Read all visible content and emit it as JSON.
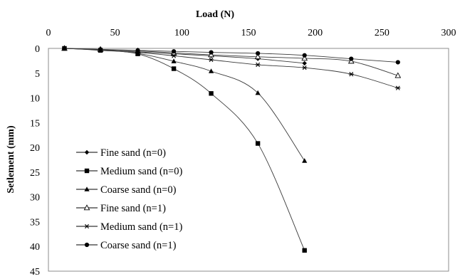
{
  "chart_data": {
    "type": "scatter",
    "xlabel": "Load  (N)",
    "ylabel": "Setlement (mm)",
    "xlim": [
      0,
      300
    ],
    "ylim": [
      0,
      45
    ],
    "y_inverted": true,
    "x_axis_position": "top",
    "grid": false,
    "legend_position": "bottom-left",
    "x_ticks": [
      "0",
      "50",
      "100",
      "150",
      "200",
      "250",
      "300"
    ],
    "y_ticks": [
      "0",
      "5",
      "10",
      "15",
      "20",
      "25",
      "30",
      "35",
      "40",
      "45"
    ],
    "series": [
      {
        "name": "Fine sand (n=0)",
        "marker": "diamond",
        "x": [
          12,
          39,
          67,
          94,
          122,
          157,
          192
        ],
        "y": [
          0,
          0.3,
          0.7,
          1.1,
          1.5,
          2.1,
          3.0
        ]
      },
      {
        "name": "Medium sand (n=0)",
        "marker": "square",
        "x": [
          12,
          39,
          67,
          94,
          122,
          157,
          192
        ],
        "y": [
          0,
          0.4,
          1.1,
          4.1,
          9.1,
          19.2,
          40.8
        ]
      },
      {
        "name": "Coarse sand (n=0)",
        "marker": "triangle",
        "x": [
          12,
          39,
          67,
          94,
          122,
          157,
          192
        ],
        "y": [
          0,
          0.3,
          1.0,
          2.6,
          4.6,
          9.0,
          22.7
        ]
      },
      {
        "name": "Fine sand (n=1)",
        "marker": "triangle-open",
        "x": [
          12,
          39,
          67,
          94,
          122,
          157,
          192,
          227,
          262
        ],
        "y": [
          0,
          0.2,
          0.5,
          0.9,
          1.3,
          1.7,
          2.0,
          2.6,
          5.5
        ]
      },
      {
        "name": "Medium sand (n=1)",
        "marker": "star",
        "x": [
          12,
          39,
          67,
          94,
          122,
          157,
          192,
          227,
          262
        ],
        "y": [
          0,
          0.3,
          0.8,
          1.5,
          2.3,
          3.3,
          3.9,
          5.2,
          8.0
        ]
      },
      {
        "name": "Coarse sand (n=1)",
        "marker": "circle",
        "x": [
          12,
          39,
          67,
          94,
          122,
          157,
          192,
          227,
          262
        ],
        "y": [
          0,
          0.2,
          0.4,
          0.6,
          0.8,
          1.0,
          1.4,
          2.1,
          2.8
        ]
      }
    ]
  }
}
